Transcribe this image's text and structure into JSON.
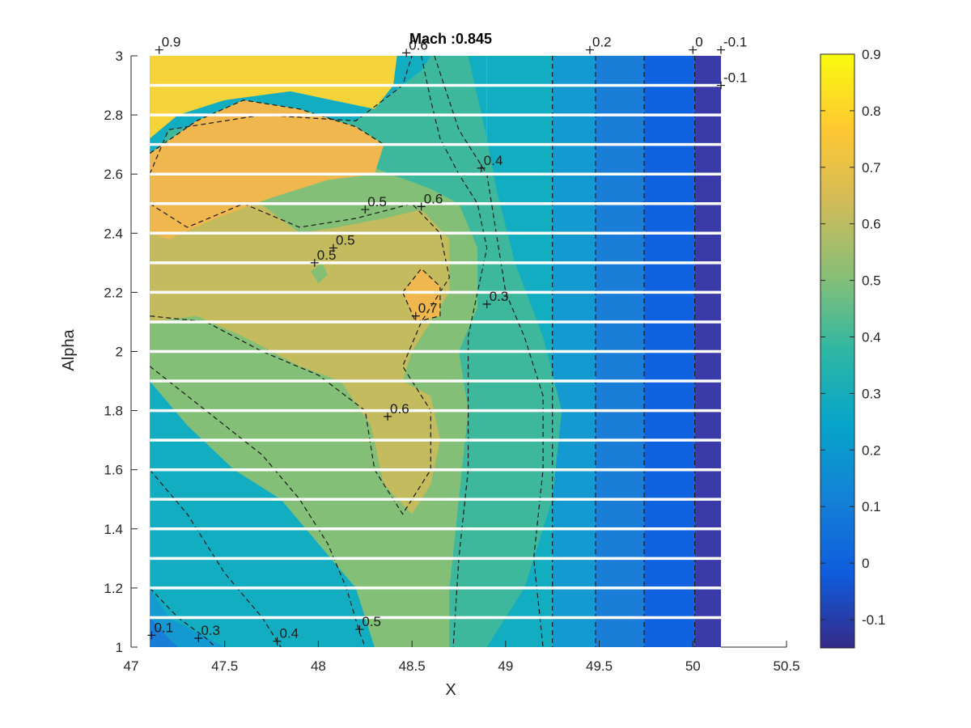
{
  "chart_data": {
    "type": "contourf",
    "title": "Mach :0.845",
    "xlabel": "X",
    "ylabel": "Alpha",
    "xlim": [
      47,
      50.5
    ],
    "ylim": [
      1,
      3
    ],
    "x_ticks": [
      "47",
      "47.5",
      "48",
      "48.5",
      "49",
      "49.5",
      "50",
      "50.5"
    ],
    "y_ticks": [
      "1",
      "1.2",
      "1.4",
      "1.6",
      "1.8",
      "2",
      "2.2",
      "2.4",
      "2.6",
      "2.8",
      "3"
    ],
    "data_x_range": [
      47.1,
      50.15
    ],
    "colormap": "parula",
    "colorbar": {
      "clim": [
        -0.15,
        0.9
      ],
      "ticks": [
        "0.9",
        "0.8",
        "0.7",
        "0.6",
        "0.5",
        "0.4",
        "0.3",
        "0.2",
        "0.1",
        "0",
        "-0.1"
      ],
      "colors": [
        "#352a87",
        "#0f5cdd",
        "#1481d6",
        "#06a4ca",
        "#2eb7a4",
        "#87bf77",
        "#d1bb59",
        "#fec832",
        "#f9fb0e"
      ]
    },
    "level_fills": {
      "-0.1": "#3a3ba8",
      "0": "#0f62e0",
      "0.1": "#1a7ed8",
      "0.2": "#1499d0",
      "0.3": "#12adc0",
      "0.4": "#3eb89c",
      "0.5": "#84bf78",
      "0.6": "#c3bb5e",
      "0.7": "#efb74d",
      "0.8": "#f7d33a",
      "0.9": "#f7d33a"
    },
    "contour_levels": [
      -0.1,
      0,
      0.1,
      0.2,
      0.3,
      0.4,
      0.5,
      0.6,
      0.7,
      0.8,
      0.9
    ],
    "alpha_gridlines": [
      1.1,
      1.2,
      1.3,
      1.4,
      1.5,
      1.6,
      1.7,
      1.8,
      1.9,
      2.0,
      2.1,
      2.2,
      2.3,
      2.4,
      2.5,
      2.6,
      2.7,
      2.8,
      2.9
    ],
    "vertical_bands": [
      {
        "level": "0.3",
        "x0": 48.9,
        "x1": 49.25
      },
      {
        "level": "0.2",
        "x0": 49.25,
        "x1": 49.48
      },
      {
        "level": "0.1",
        "x0": 49.48,
        "x1": 49.74
      },
      {
        "level": "0",
        "x0": 49.74,
        "x1": 50.01
      },
      {
        "level": "-0.1",
        "x0": 50.01,
        "x1": 50.15
      }
    ],
    "regions": [
      {
        "level": "0.2",
        "points": [
          [
            47.1,
            1
          ],
          [
            47.1,
            1.2
          ],
          [
            47.2,
            1.1
          ],
          [
            47.35,
            1.05
          ],
          [
            47.5,
            1
          ]
        ]
      },
      {
        "level": "0.1",
        "points": [
          [
            47.1,
            1
          ],
          [
            47.1,
            1.1
          ],
          [
            47.2,
            1.03
          ],
          [
            47.25,
            1
          ]
        ]
      },
      {
        "level": "0.3",
        "points": [
          [
            47.1,
            1.9
          ],
          [
            47.4,
            1.8
          ],
          [
            47.6,
            1.7
          ],
          [
            47.85,
            1.55
          ],
          [
            48.05,
            1.4
          ],
          [
            48.2,
            1.2
          ],
          [
            48.3,
            1
          ],
          [
            47.8,
            1
          ],
          [
            47.6,
            1.2
          ],
          [
            47.35,
            1.45
          ],
          [
            47.1,
            1.6
          ]
        ]
      },
      {
        "level": "0.4",
        "points": [
          [
            47.1,
            2.6
          ],
          [
            47.2,
            2.75
          ],
          [
            47.7,
            2.8
          ],
          [
            48.2,
            2.78
          ],
          [
            48.55,
            2.95
          ],
          [
            48.6,
            3
          ],
          [
            48.8,
            3
          ],
          [
            48.9,
            2.72
          ],
          [
            48.95,
            2.55
          ],
          [
            49.05,
            2.3
          ],
          [
            49.2,
            2.05
          ],
          [
            49.3,
            1.8
          ],
          [
            49.25,
            1.5
          ],
          [
            49.1,
            1.2
          ],
          [
            48.9,
            1
          ],
          [
            48.3,
            1
          ],
          [
            48.2,
            1.2
          ],
          [
            48.05,
            1.4
          ],
          [
            47.85,
            1.55
          ],
          [
            47.6,
            1.7
          ],
          [
            47.4,
            1.8
          ],
          [
            47.1,
            1.9
          ]
        ]
      },
      {
        "level": "0.5",
        "points": [
          [
            47.1,
            2.5
          ],
          [
            47.2,
            2.38
          ],
          [
            47.5,
            2.42
          ],
          [
            47.8,
            2.55
          ],
          [
            48.05,
            2.65
          ],
          [
            48.3,
            2.62
          ],
          [
            48.6,
            2.55
          ],
          [
            48.75,
            2.5
          ],
          [
            48.85,
            2.35
          ],
          [
            48.85,
            2.15
          ],
          [
            48.75,
            2.0
          ],
          [
            48.8,
            1.8
          ],
          [
            48.75,
            1.5
          ],
          [
            48.7,
            1.2
          ],
          [
            48.7,
            1
          ],
          [
            48.3,
            1
          ],
          [
            48.2,
            1.2
          ],
          [
            48.0,
            1.35
          ],
          [
            47.8,
            1.5
          ],
          [
            47.55,
            1.6
          ],
          [
            47.3,
            1.75
          ],
          [
            47.1,
            1.9
          ]
        ]
      },
      {
        "level": "0.6",
        "points": [
          [
            47.1,
            2.4
          ],
          [
            47.4,
            2.47
          ],
          [
            47.65,
            2.52
          ],
          [
            47.9,
            2.4
          ],
          [
            48.1,
            2.42
          ],
          [
            48.35,
            2.45
          ],
          [
            48.55,
            2.48
          ],
          [
            48.7,
            2.38
          ],
          [
            48.7,
            2.2
          ],
          [
            48.6,
            2.1
          ],
          [
            48.5,
            2.0
          ],
          [
            48.45,
            1.9
          ],
          [
            48.6,
            1.85
          ],
          [
            48.65,
            1.7
          ],
          [
            48.6,
            1.55
          ],
          [
            48.5,
            1.45
          ],
          [
            48.35,
            1.55
          ],
          [
            48.28,
            1.75
          ],
          [
            48.12,
            1.9
          ],
          [
            47.9,
            1.95
          ],
          [
            47.6,
            2.05
          ],
          [
            47.35,
            2.12
          ],
          [
            47.1,
            2.1
          ]
        ]
      },
      {
        "level": "0.7",
        "points": [
          [
            47.1,
            2.67
          ],
          [
            47.35,
            2.78
          ],
          [
            47.6,
            2.85
          ],
          [
            47.9,
            2.82
          ],
          [
            48.2,
            2.76
          ],
          [
            48.35,
            2.7
          ],
          [
            48.3,
            2.6
          ],
          [
            48.05,
            2.58
          ],
          [
            47.75,
            2.52
          ],
          [
            47.45,
            2.45
          ],
          [
            47.2,
            2.38
          ],
          [
            47.1,
            2.4
          ]
        ]
      },
      {
        "level": "0.7",
        "points": [
          [
            48.45,
            2.2
          ],
          [
            48.55,
            2.28
          ],
          [
            48.65,
            2.22
          ],
          [
            48.65,
            2.12
          ],
          [
            48.52,
            2.1
          ]
        ]
      },
      {
        "level": "0.8",
        "points": [
          [
            47.1,
            3
          ],
          [
            48.42,
            3
          ],
          [
            48.4,
            2.9
          ],
          [
            48.3,
            2.82
          ],
          [
            47.85,
            2.88
          ],
          [
            47.5,
            2.85
          ],
          [
            47.25,
            2.8
          ],
          [
            47.1,
            2.72
          ]
        ]
      },
      {
        "level": "0.5",
        "points": [
          [
            47.96,
            2.27
          ],
          [
            48.02,
            2.3
          ],
          [
            48.05,
            2.26
          ],
          [
            48.0,
            2.23
          ]
        ]
      }
    ],
    "contour_lines": [
      [
        [
          47.1,
          1.95
        ],
        [
          47.3,
          1.85
        ],
        [
          47.5,
          1.75
        ],
        [
          47.7,
          1.65
        ],
        [
          47.9,
          1.5
        ],
        [
          48.05,
          1.35
        ],
        [
          48.15,
          1.2
        ],
        [
          48.22,
          1.05
        ],
        [
          48.25,
          1
        ]
      ],
      [
        [
          47.1,
          2.6
        ],
        [
          47.2,
          2.75
        ],
        [
          47.7,
          2.8
        ],
        [
          48.2,
          2.78
        ],
        [
          48.45,
          2.9
        ],
        [
          48.5,
          3
        ]
      ],
      [
        [
          48.55,
          3
        ],
        [
          48.6,
          2.85
        ],
        [
          48.65,
          2.72
        ],
        [
          48.75,
          2.6
        ],
        [
          48.85,
          2.5
        ],
        [
          48.9,
          2.35
        ],
        [
          48.85,
          2.2
        ],
        [
          48.8,
          2.05
        ],
        [
          48.8,
          1.85
        ],
        [
          48.8,
          1.6
        ],
        [
          48.75,
          1.3
        ],
        [
          48.72,
          1
        ]
      ],
      [
        [
          48.62,
          3
        ],
        [
          48.75,
          2.75
        ],
        [
          48.9,
          2.6
        ],
        [
          48.95,
          2.4
        ],
        [
          49.0,
          2.2
        ],
        [
          49.1,
          2.05
        ],
        [
          49.2,
          1.85
        ],
        [
          49.2,
          1.6
        ],
        [
          49.15,
          1.3
        ],
        [
          49.2,
          1
        ]
      ],
      [
        [
          47.1,
          1.6
        ],
        [
          47.3,
          1.45
        ],
        [
          47.5,
          1.25
        ],
        [
          47.7,
          1.1
        ],
        [
          47.8,
          1
        ]
      ],
      [
        [
          47.1,
          1.2
        ],
        [
          47.25,
          1.1
        ],
        [
          47.4,
          1.03
        ],
        [
          47.45,
          1
        ]
      ],
      [
        [
          47.1,
          2.5
        ],
        [
          47.3,
          2.42
        ],
        [
          47.6,
          2.5
        ],
        [
          47.9,
          2.42
        ],
        [
          48.2,
          2.45
        ],
        [
          48.5,
          2.5
        ],
        [
          48.65,
          2.4
        ],
        [
          48.7,
          2.25
        ],
        [
          48.55,
          2.1
        ],
        [
          48.45,
          1.95
        ],
        [
          48.6,
          1.8
        ],
        [
          48.6,
          1.6
        ],
        [
          48.45,
          1.45
        ],
        [
          48.3,
          1.6
        ],
        [
          48.25,
          1.8
        ],
        [
          48.0,
          1.92
        ],
        [
          47.7,
          2.0
        ],
        [
          47.4,
          2.1
        ],
        [
          47.1,
          2.12
        ]
      ],
      [
        [
          48.45,
          2.2
        ],
        [
          48.55,
          2.28
        ],
        [
          48.65,
          2.22
        ],
        [
          48.65,
          2.12
        ],
        [
          48.52,
          2.1
        ],
        [
          48.45,
          2.2
        ]
      ],
      [
        [
          47.1,
          2.67
        ],
        [
          47.35,
          2.78
        ],
        [
          47.6,
          2.85
        ],
        [
          47.9,
          2.82
        ],
        [
          48.2,
          2.76
        ],
        [
          48.35,
          2.7
        ]
      ],
      [
        [
          49.25,
          3
        ],
        [
          49.25,
          1
        ]
      ],
      [
        [
          49.48,
          3
        ],
        [
          49.48,
          1
        ]
      ],
      [
        [
          49.74,
          3
        ],
        [
          49.74,
          1
        ]
      ],
      [
        [
          50.01,
          3
        ],
        [
          50.01,
          1
        ]
      ]
    ],
    "contour_labels": [
      {
        "text": "0.9",
        "x": 47.15,
        "y": 3.02
      },
      {
        "text": "0.6",
        "x": 48.47,
        "y": 3.01
      },
      {
        "text": "0.2",
        "x": 49.45,
        "y": 3.02
      },
      {
        "text": "0",
        "x": 50.0,
        "y": 3.02
      },
      {
        "text": "-0.1",
        "x": 50.15,
        "y": 3.02
      },
      {
        "text": "-0.1",
        "x": 50.15,
        "y": 2.9
      },
      {
        "text": "0.4",
        "x": 48.87,
        "y": 2.62
      },
      {
        "text": "0.5",
        "x": 48.25,
        "y": 2.48
      },
      {
        "text": "0.6",
        "x": 48.55,
        "y": 2.49
      },
      {
        "text": "0.5",
        "x": 48.08,
        "y": 2.35
      },
      {
        "text": "0.5",
        "x": 47.98,
        "y": 2.3
      },
      {
        "text": "0.7",
        "x": 48.52,
        "y": 2.12
      },
      {
        "text": "0.3",
        "x": 48.9,
        "y": 2.16
      },
      {
        "text": "0.6",
        "x": 48.37,
        "y": 1.78
      },
      {
        "text": "0.1",
        "x": 47.11,
        "y": 1.04
      },
      {
        "text": "0.3",
        "x": 47.36,
        "y": 1.03
      },
      {
        "text": "0.4",
        "x": 47.78,
        "y": 1.02
      },
      {
        "text": "0.5",
        "x": 48.22,
        "y": 1.06
      }
    ]
  }
}
